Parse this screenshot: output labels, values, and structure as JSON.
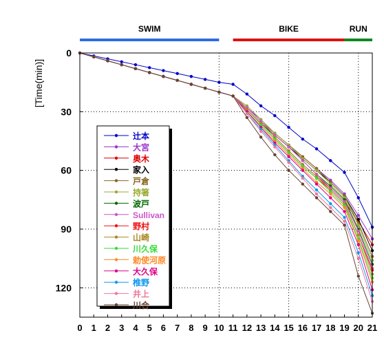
{
  "chart_data": {
    "type": "line",
    "title": "",
    "xlabel": "",
    "ylabel": "[Time(min)]",
    "xlim": [
      0,
      21
    ],
    "ylim": [
      0,
      135
    ],
    "y_inverted": true,
    "x_ticks": [
      0,
      1,
      2,
      3,
      4,
      5,
      6,
      7,
      8,
      9,
      10,
      11,
      12,
      13,
      14,
      15,
      16,
      17,
      18,
      19,
      20,
      21
    ],
    "y_ticks": [
      0,
      30,
      60,
      90,
      120
    ],
    "grid": {
      "dotted_vertical": [
        10,
        15,
        20
      ],
      "dotted_horizontal": [
        30,
        60,
        90,
        120
      ]
    },
    "legend_position": "left-center",
    "segments": [
      {
        "label": "SWIM",
        "from": 0,
        "to": 10,
        "color": "#2f6de1"
      },
      {
        "label": "BIKE",
        "from": 11,
        "to": 19,
        "color": "#dd1111"
      },
      {
        "label": "RUN",
        "from": 19,
        "to": 21,
        "color": "#118822"
      }
    ],
    "x": [
      0,
      1,
      2,
      3,
      4,
      5,
      6,
      7,
      8,
      9,
      10,
      11,
      12,
      13,
      14,
      15,
      16,
      17,
      18,
      19,
      20,
      21
    ],
    "series": [
      {
        "name": "辻本",
        "color": "#0000cc",
        "values": [
          0,
          1.5,
          3,
          4.5,
          6,
          7.5,
          9,
          10.5,
          12,
          13.5,
          15,
          16,
          21,
          27,
          32,
          38,
          44,
          49,
          55,
          61,
          74,
          89
        ]
      },
      {
        "name": "大宮",
        "color": "#9933cc",
        "values": [
          0,
          2,
          4,
          6,
          8,
          10,
          12,
          14,
          16,
          18,
          20,
          22,
          28,
          34,
          41,
          47,
          53,
          59,
          65,
          72,
          83,
          95
        ]
      },
      {
        "name": "奥木",
        "color": "#dd0000",
        "values": [
          0,
          2,
          4,
          6,
          8,
          10,
          12,
          14,
          16,
          18,
          20,
          22,
          29,
          36,
          43,
          50,
          57,
          63,
          69,
          76,
          86,
          98
        ]
      },
      {
        "name": "家入",
        "color": "#000000",
        "values": [
          0,
          2,
          4,
          6,
          8,
          10,
          12,
          14,
          16,
          18,
          20,
          22,
          29,
          36,
          42,
          48,
          54,
          60,
          66,
          73,
          85,
          101
        ]
      },
      {
        "name": "戸倉",
        "color": "#886622",
        "values": [
          0,
          2,
          4,
          6,
          8,
          10,
          12,
          14,
          16,
          18,
          20,
          22,
          28,
          35,
          41,
          47,
          53,
          59,
          66,
          73,
          87,
          104
        ]
      },
      {
        "name": "持箸",
        "color": "#99aa33",
        "values": [
          0,
          2,
          4,
          6,
          8,
          10,
          12,
          14,
          16,
          18,
          20,
          22,
          27,
          34,
          41,
          47,
          54,
          60,
          67,
          74,
          88,
          106
        ]
      },
      {
        "name": "波戸",
        "color": "#006600",
        "values": [
          0,
          2,
          4,
          6,
          8,
          10,
          12,
          14,
          16,
          18,
          20,
          22,
          29,
          36,
          42,
          48,
          55,
          62,
          68,
          75,
          90,
          108
        ]
      },
      {
        "name": "Sullivan",
        "color": "#cc55cc",
        "values": [
          0,
          2,
          4,
          6,
          8,
          10,
          12,
          14,
          16,
          18,
          20,
          22,
          28,
          35,
          42,
          48,
          55,
          62,
          69,
          76,
          91,
          110
        ]
      },
      {
        "name": "野村",
        "color": "#ee1111",
        "values": [
          0,
          2,
          4,
          6,
          8,
          10,
          12,
          14,
          16,
          18,
          20,
          22,
          30,
          37,
          44,
          51,
          58,
          64,
          70,
          77,
          93,
          111
        ]
      },
      {
        "name": "山崎",
        "color": "#aa8822",
        "values": [
          0,
          2,
          4,
          6,
          8,
          10,
          12,
          14,
          16,
          18,
          20,
          22,
          29,
          36,
          43,
          50,
          57,
          63,
          70,
          77,
          93,
          113
        ]
      },
      {
        "name": "川久保",
        "color": "#33dd33",
        "values": [
          0,
          2,
          4,
          6,
          8,
          10,
          12,
          14,
          16,
          18,
          20,
          22,
          30,
          37,
          44,
          51,
          58,
          64,
          71,
          78,
          95,
          115
        ]
      },
      {
        "name": "勅使河原",
        "color": "#ff8822",
        "values": [
          0,
          2,
          4,
          6,
          8,
          10,
          12,
          14,
          16,
          18,
          20,
          22,
          30,
          38,
          45,
          52,
          59,
          66,
          72,
          79,
          96,
          117
        ]
      },
      {
        "name": "大久保",
        "color": "#dd0088",
        "values": [
          0,
          2,
          4,
          6,
          8,
          10,
          12,
          14,
          16,
          18,
          20,
          22,
          30,
          38,
          46,
          53,
          60,
          67,
          74,
          81,
          98,
          121
        ]
      },
      {
        "name": "椎野",
        "color": "#1199ee",
        "values": [
          0,
          2,
          4,
          6,
          8,
          10,
          12,
          14,
          16,
          18,
          20,
          22,
          31,
          39,
          47,
          55,
          63,
          70,
          77,
          84,
          102,
          124
        ]
      },
      {
        "name": "井上",
        "color": "#ee7799",
        "values": [
          0,
          2,
          4,
          6,
          8,
          10,
          12,
          14,
          16,
          18,
          20,
          22,
          31,
          40,
          48,
          56,
          64,
          72,
          79,
          86,
          105,
          127
        ]
      },
      {
        "name": "川合",
        "color": "#664433",
        "values": [
          0,
          2,
          4,
          6,
          8,
          10,
          12,
          14,
          16,
          18,
          20,
          22,
          33,
          43,
          52,
          60,
          67,
          74,
          81,
          88,
          114,
          133
        ]
      }
    ]
  }
}
